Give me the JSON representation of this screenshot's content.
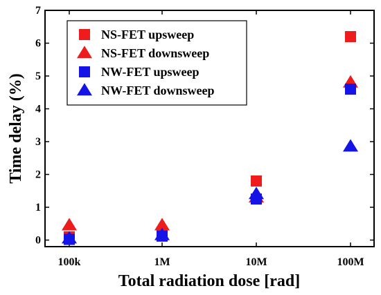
{
  "chart_data": {
    "type": "scatter",
    "xlabel": "Total radiation dose [rad]",
    "ylabel": "Time delay (%)",
    "categories": [
      "100k",
      "1M",
      "10M",
      "100M"
    ],
    "ylim": [
      -0.2,
      7
    ],
    "yticks": [
      0,
      1,
      2,
      3,
      4,
      5,
      6,
      7
    ],
    "legend_position": "top-left",
    "grid": false,
    "series": [
      {
        "name": "NS-FET upsweep",
        "marker": "square",
        "color": "#ee1c1c",
        "values": [
          0.1,
          0.15,
          1.8,
          6.2
        ]
      },
      {
        "name": "NS-FET downsweep",
        "marker": "triangle",
        "color": "#ee1c1c",
        "values": [
          0.45,
          0.45,
          1.3,
          4.8
        ]
      },
      {
        "name": "NW-FET upsweep",
        "marker": "square",
        "color": "#1414e6",
        "values": [
          0.02,
          0.12,
          1.25,
          4.6
        ]
      },
      {
        "name": "NW-FET downsweep",
        "marker": "triangle",
        "color": "#1414e6",
        "values": [
          0.05,
          0.15,
          1.4,
          2.85
        ]
      }
    ]
  }
}
